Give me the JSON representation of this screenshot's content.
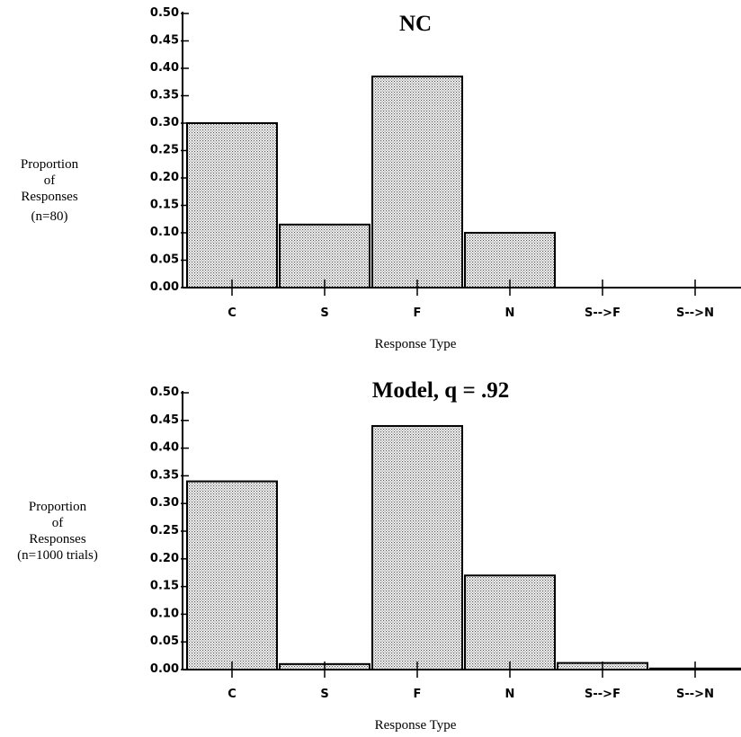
{
  "chart_data": [
    {
      "type": "bar",
      "title": "NC",
      "ylabel_lines": [
        "Proportion",
        "of",
        "Responses",
        "(n=80)"
      ],
      "xlabel": "Response Type",
      "categories": [
        "C",
        "S",
        "F",
        "N",
        "S-->F",
        "S-->N"
      ],
      "values": [
        0.3,
        0.115,
        0.385,
        0.1,
        0.0,
        0.0
      ],
      "ylim": [
        0,
        0.5
      ],
      "yticks": [
        "0.00",
        "0.05",
        "0.10",
        "0.15",
        "0.20",
        "0.25",
        "0.30",
        "0.35",
        "0.40",
        "0.45",
        "0.50"
      ],
      "grid": false,
      "bar_fill": "dotted-gray"
    },
    {
      "type": "bar",
      "title": "Model, q = .92",
      "ylabel_lines": [
        "Proportion",
        "of",
        "Responses",
        "(n=1000 trials)"
      ],
      "xlabel": "Response Type",
      "categories": [
        "C",
        "S",
        "F",
        "N",
        "S-->F",
        "S-->N"
      ],
      "values": [
        0.34,
        0.01,
        0.44,
        0.17,
        0.012,
        0.002
      ],
      "ylim": [
        0,
        0.5
      ],
      "yticks": [
        "0.00",
        "0.05",
        "0.10",
        "0.15",
        "0.20",
        "0.25",
        "0.30",
        "0.35",
        "0.40",
        "0.45",
        "0.50"
      ],
      "grid": false,
      "bar_fill": "dotted-gray"
    }
  ]
}
